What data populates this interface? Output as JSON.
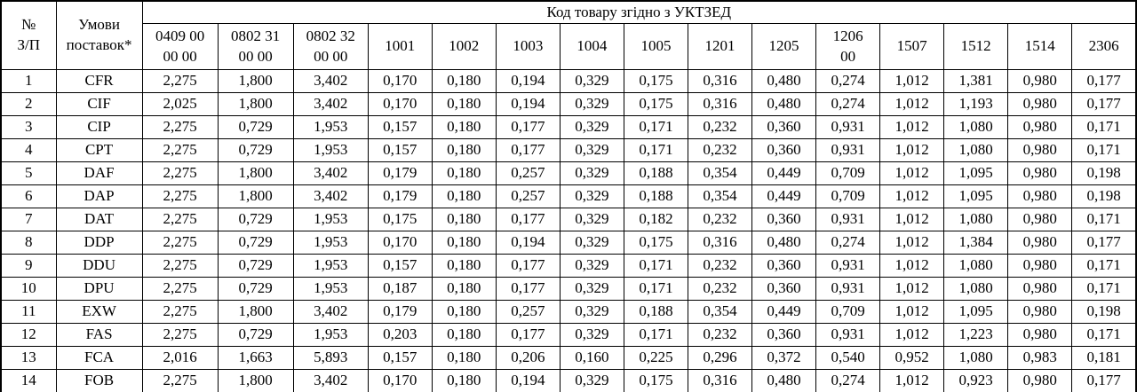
{
  "table": {
    "header": {
      "col_num": "№\nЗ/П",
      "col_terms": "Умови\nпоставок*",
      "group_title": "Код товару згідно з УКТЗЕД",
      "code_columns": [
        "0409 00\n00 00",
        "0802 31\n00 00",
        "0802 32\n00 00",
        "1001",
        "1002",
        "1003",
        "1004",
        "1005",
        "1201",
        "1205",
        "1206\n00",
        "1507",
        "1512",
        "1514",
        "2306"
      ]
    },
    "rows": [
      {
        "num": "1",
        "term": "CFR",
        "values": [
          "2,275",
          "1,800",
          "3,402",
          "0,170",
          "0,180",
          "0,194",
          "0,329",
          "0,175",
          "0,316",
          "0,480",
          "0,274",
          "1,012",
          "1,381",
          "0,980",
          "0,177"
        ]
      },
      {
        "num": "2",
        "term": "CIF",
        "values": [
          "2,025",
          "1,800",
          "3,402",
          "0,170",
          "0,180",
          "0,194",
          "0,329",
          "0,175",
          "0,316",
          "0,480",
          "0,274",
          "1,012",
          "1,193",
          "0,980",
          "0,177"
        ]
      },
      {
        "num": "3",
        "term": "CIP",
        "values": [
          "2,275",
          "0,729",
          "1,953",
          "0,157",
          "0,180",
          "0,177",
          "0,329",
          "0,171",
          "0,232",
          "0,360",
          "0,931",
          "1,012",
          "1,080",
          "0,980",
          "0,171"
        ]
      },
      {
        "num": "4",
        "term": "CPT",
        "values": [
          "2,275",
          "0,729",
          "1,953",
          "0,157",
          "0,180",
          "0,177",
          "0,329",
          "0,171",
          "0,232",
          "0,360",
          "0,931",
          "1,012",
          "1,080",
          "0,980",
          "0,171"
        ]
      },
      {
        "num": "5",
        "term": "DAF",
        "values": [
          "2,275",
          "1,800",
          "3,402",
          "0,179",
          "0,180",
          "0,257",
          "0,329",
          "0,188",
          "0,354",
          "0,449",
          "0,709",
          "1,012",
          "1,095",
          "0,980",
          "0,198"
        ]
      },
      {
        "num": "6",
        "term": "DAP",
        "values": [
          "2,275",
          "1,800",
          "3,402",
          "0,179",
          "0,180",
          "0,257",
          "0,329",
          "0,188",
          "0,354",
          "0,449",
          "0,709",
          "1,012",
          "1,095",
          "0,980",
          "0,198"
        ]
      },
      {
        "num": "7",
        "term": "DAT",
        "values": [
          "2,275",
          "0,729",
          "1,953",
          "0,175",
          "0,180",
          "0,177",
          "0,329",
          "0,182",
          "0,232",
          "0,360",
          "0,931",
          "1,012",
          "1,080",
          "0,980",
          "0,171"
        ]
      },
      {
        "num": "8",
        "term": "DDP",
        "values": [
          "2,275",
          "0,729",
          "1,953",
          "0,170",
          "0,180",
          "0,194",
          "0,329",
          "0,175",
          "0,316",
          "0,480",
          "0,274",
          "1,012",
          "1,384",
          "0,980",
          "0,177"
        ]
      },
      {
        "num": "9",
        "term": "DDU",
        "values": [
          "2,275",
          "0,729",
          "1,953",
          "0,157",
          "0,180",
          "0,177",
          "0,329",
          "0,171",
          "0,232",
          "0,360",
          "0,931",
          "1,012",
          "1,080",
          "0,980",
          "0,171"
        ]
      },
      {
        "num": "10",
        "term": "DPU",
        "values": [
          "2,275",
          "0,729",
          "1,953",
          "0,187",
          "0,180",
          "0,177",
          "0,329",
          "0,171",
          "0,232",
          "0,360",
          "0,931",
          "1,012",
          "1,080",
          "0,980",
          "0,171"
        ]
      },
      {
        "num": "11",
        "term": "EXW",
        "values": [
          "2,275",
          "1,800",
          "3,402",
          "0,179",
          "0,180",
          "0,257",
          "0,329",
          "0,188",
          "0,354",
          "0,449",
          "0,709",
          "1,012",
          "1,095",
          "0,980",
          "0,198"
        ]
      },
      {
        "num": "12",
        "term": "FAS",
        "values": [
          "2,275",
          "0,729",
          "1,953",
          "0,203",
          "0,180",
          "0,177",
          "0,329",
          "0,171",
          "0,232",
          "0,360",
          "0,931",
          "1,012",
          "1,223",
          "0,980",
          "0,171"
        ]
      },
      {
        "num": "13",
        "term": "FCA",
        "values": [
          "2,016",
          "1,663",
          "5,893",
          "0,157",
          "0,180",
          "0,206",
          "0,160",
          "0,225",
          "0,296",
          "0,372",
          "0,540",
          "0,952",
          "1,080",
          "0,983",
          "0,181"
        ]
      },
      {
        "num": "14",
        "term": "FOB",
        "values": [
          "2,275",
          "1,800",
          "3,402",
          "0,170",
          "0,180",
          "0,194",
          "0,329",
          "0,175",
          "0,316",
          "0,480",
          "0,274",
          "1,012",
          "0,923",
          "0,980",
          "0,177"
        ]
      }
    ]
  },
  "colors": {
    "border": "#000000",
    "background": "#ffffff",
    "text": "#000000"
  }
}
